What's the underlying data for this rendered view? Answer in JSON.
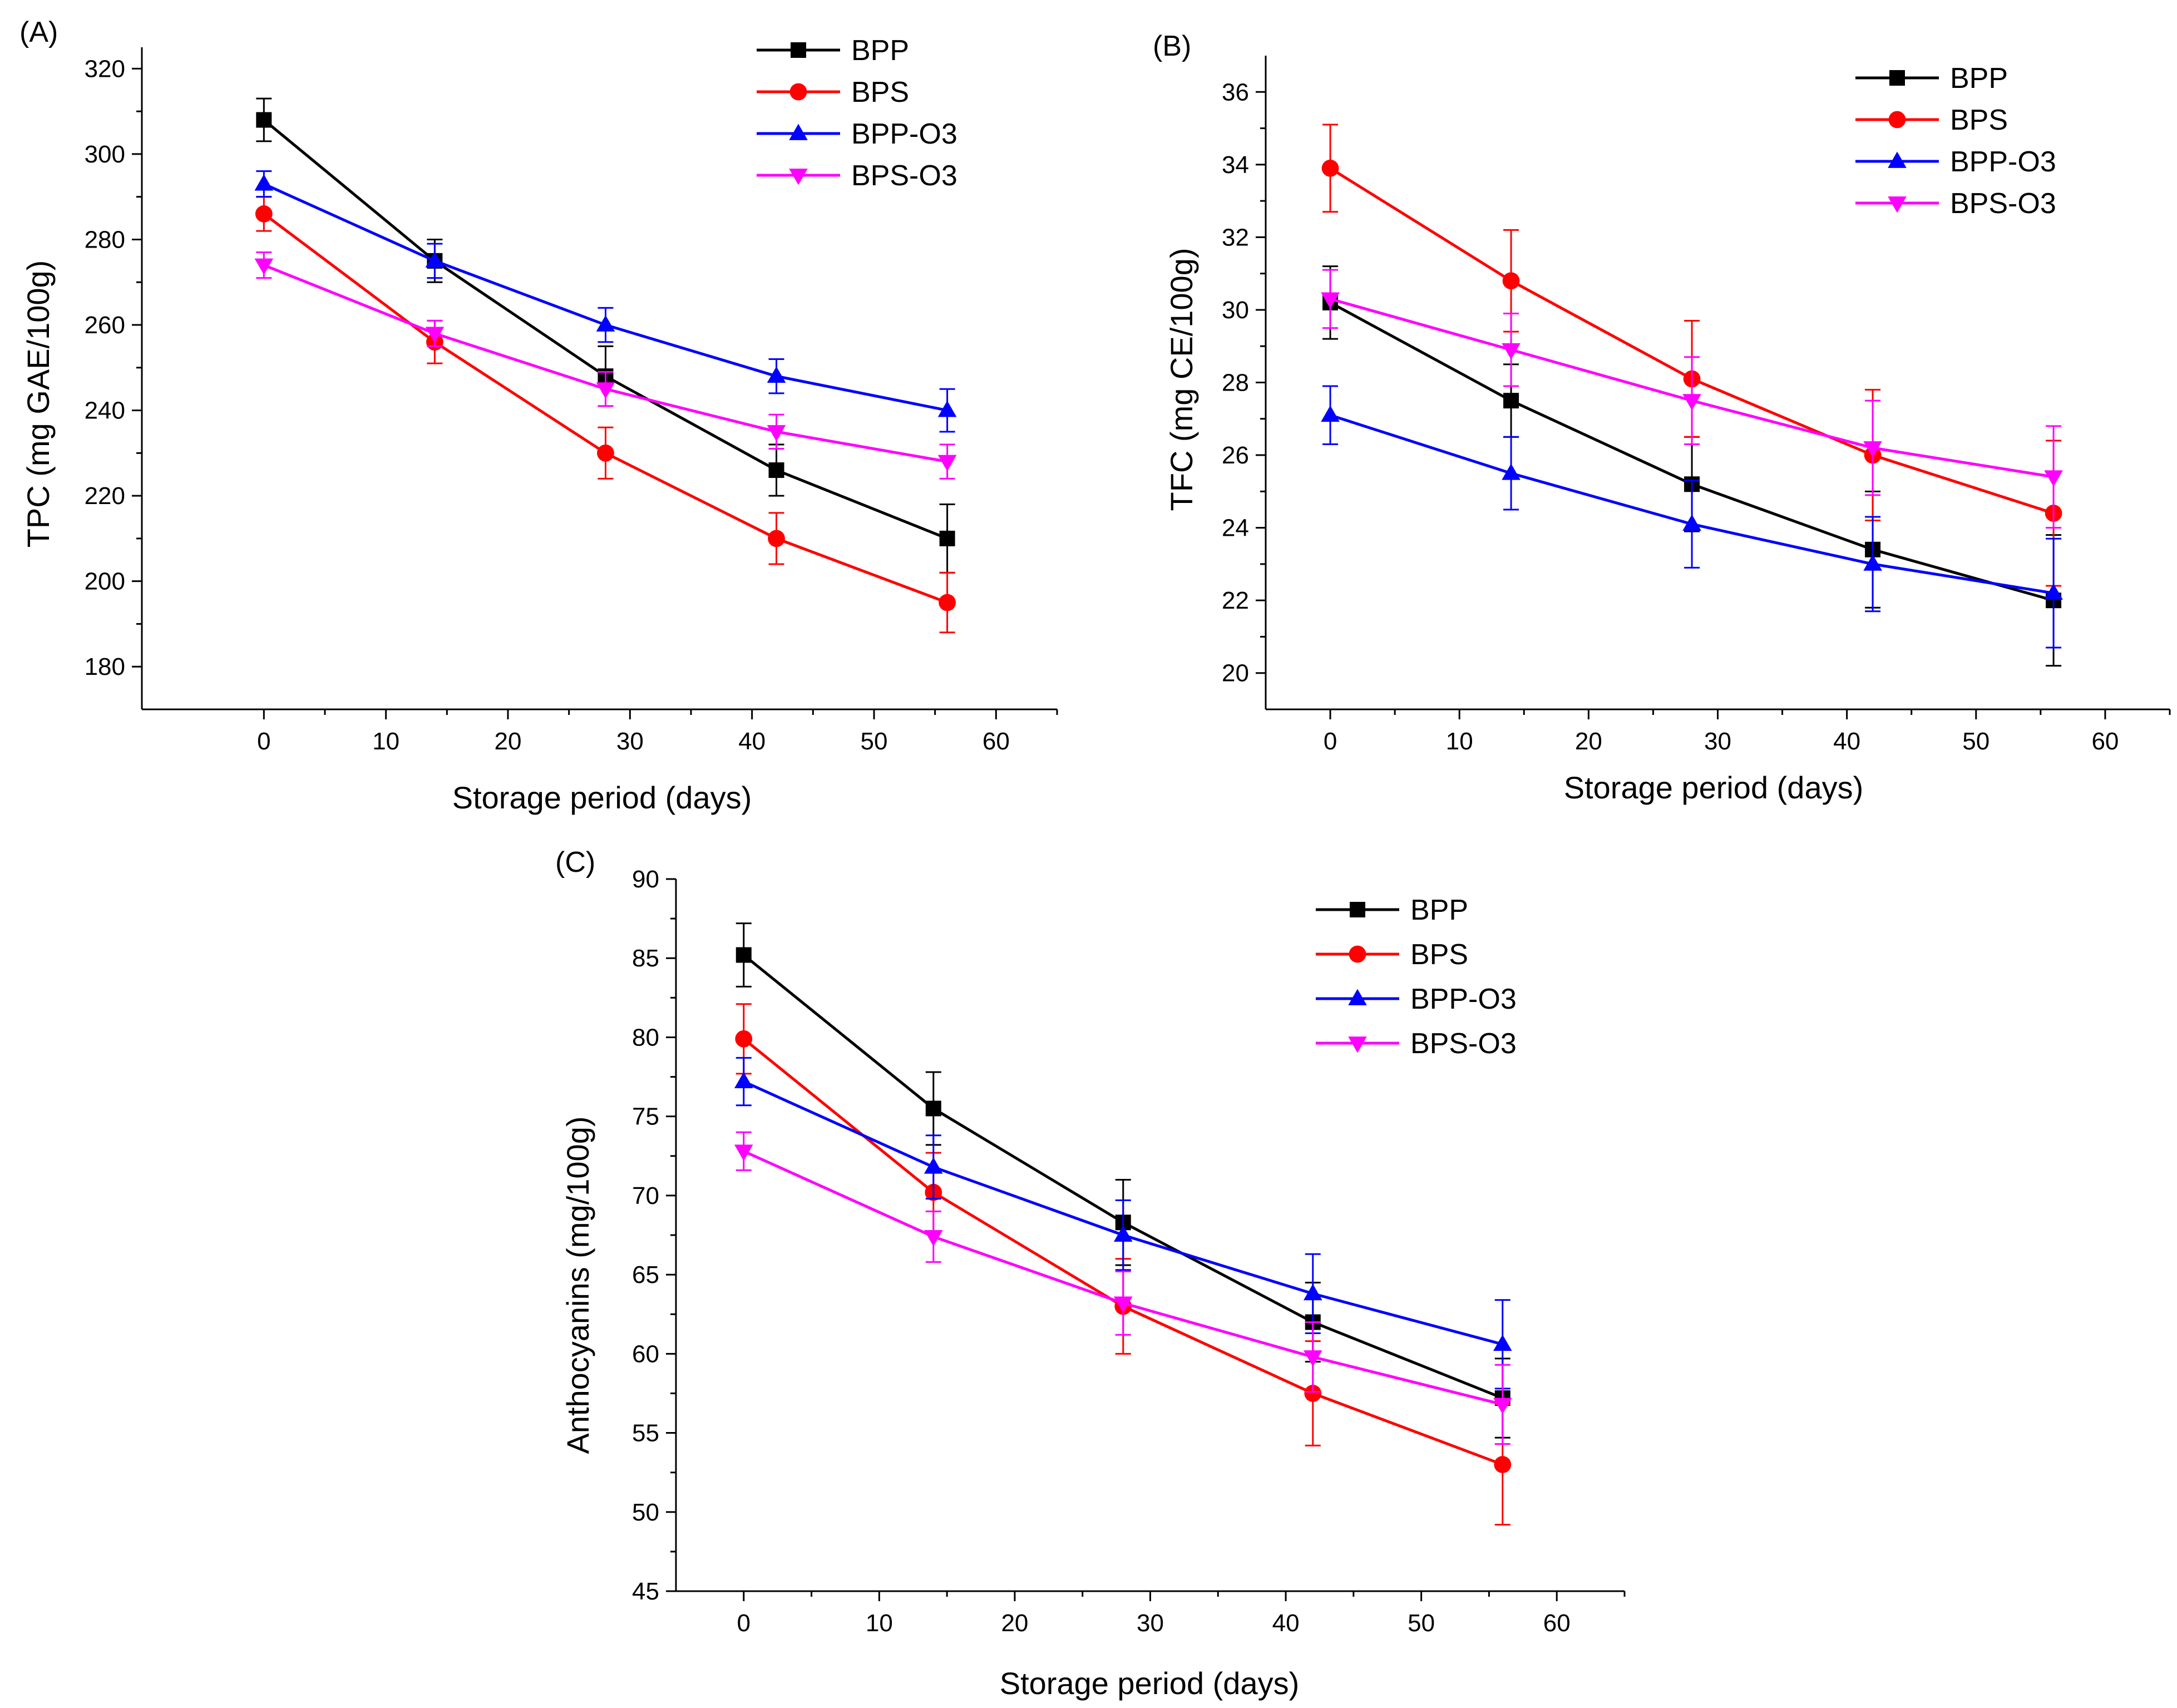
{
  "figure": {
    "background": "#ffffff",
    "axis_color": "#000000"
  },
  "series_style": [
    {
      "name": "BPP",
      "color": "#000000",
      "marker": "square"
    },
    {
      "name": "BPS",
      "color": "#ff0000",
      "marker": "circle"
    },
    {
      "name": "BPP-O3",
      "color": "#0000ff",
      "marker": "triangle-up"
    },
    {
      "name": "BPS-O3",
      "color": "#ff00ff",
      "marker": "triangle-down"
    }
  ],
  "chart_data": [
    {
      "id": "A",
      "panel_label": "(A)",
      "type": "line",
      "xlabel": "Storage period (days)",
      "ylabel": "TPC (mg GAE/100g)",
      "xlim": [
        -10,
        65
      ],
      "ylim": [
        170,
        325
      ],
      "xticks": [
        0,
        10,
        20,
        30,
        40,
        50,
        60
      ],
      "xminor": [
        5,
        15,
        25,
        35,
        45,
        55
      ],
      "yticks": [
        180,
        200,
        220,
        240,
        260,
        280,
        300,
        320
      ],
      "legend_position": "top-right",
      "x": [
        0,
        14,
        28,
        42,
        56
      ],
      "series": [
        {
          "name": "BPP",
          "values": [
            308,
            275,
            248,
            226,
            210
          ],
          "errors": [
            5,
            5,
            7,
            6,
            8
          ]
        },
        {
          "name": "BPS",
          "values": [
            286,
            256,
            230,
            210,
            195
          ],
          "errors": [
            4,
            5,
            6,
            6,
            7
          ]
        },
        {
          "name": "BPP-O3",
          "values": [
            293,
            275,
            260,
            248,
            240
          ],
          "errors": [
            3,
            4,
            4,
            4,
            5
          ]
        },
        {
          "name": "BPS-O3",
          "values": [
            274,
            258,
            245,
            235,
            228
          ],
          "errors": [
            3,
            3,
            4,
            4,
            4
          ]
        }
      ]
    },
    {
      "id": "B",
      "panel_label": "(B)",
      "type": "line",
      "xlabel": "Storage period (days)",
      "ylabel": "TFC (mg CE/100g)",
      "xlim": [
        -5,
        65
      ],
      "ylim": [
        19,
        37
      ],
      "xticks": [
        0,
        10,
        20,
        30,
        40,
        50,
        60
      ],
      "xminor": [
        5,
        15,
        25,
        35,
        45,
        55
      ],
      "yticks": [
        20,
        22,
        24,
        26,
        28,
        30,
        32,
        34,
        36
      ],
      "legend_position": "top-right",
      "x": [
        0,
        14,
        28,
        42,
        56
      ],
      "series": [
        {
          "name": "BPP",
          "values": [
            30.2,
            27.5,
            25.2,
            23.4,
            22.0
          ],
          "errors": [
            1.0,
            1.0,
            1.3,
            1.6,
            1.8
          ]
        },
        {
          "name": "BPS",
          "values": [
            33.9,
            30.8,
            28.1,
            26.0,
            24.4
          ],
          "errors": [
            1.2,
            1.4,
            1.6,
            1.8,
            2.0
          ]
        },
        {
          "name": "BPP-O3",
          "values": [
            27.1,
            25.5,
            24.1,
            23.0,
            22.2
          ],
          "errors": [
            0.8,
            1.0,
            1.2,
            1.3,
            1.5
          ]
        },
        {
          "name": "BPS-O3",
          "values": [
            30.3,
            28.9,
            27.5,
            26.2,
            25.4
          ],
          "errors": [
            0.8,
            1.0,
            1.2,
            1.3,
            1.4
          ]
        }
      ]
    },
    {
      "id": "C",
      "panel_label": "(C)",
      "type": "line",
      "xlabel": "Storage period (days)",
      "ylabel": "Anthocyanins (mg/100g)",
      "xlim": [
        -5,
        65
      ],
      "ylim": [
        45,
        90
      ],
      "xticks": [
        0,
        10,
        20,
        30,
        40,
        50,
        60
      ],
      "xminor": [
        5,
        15,
        25,
        35,
        45,
        55
      ],
      "yticks": [
        45,
        50,
        55,
        60,
        65,
        70,
        75,
        80,
        85,
        90
      ],
      "legend_position": "top-right",
      "x": [
        0,
        14,
        28,
        42,
        56
      ],
      "series": [
        {
          "name": "BPP",
          "values": [
            85.2,
            75.5,
            68.3,
            62.0,
            57.2
          ],
          "errors": [
            2.0,
            2.3,
            2.7,
            2.5,
            2.5
          ]
        },
        {
          "name": "BPS",
          "values": [
            79.9,
            70.2,
            63.0,
            57.5,
            53.0
          ],
          "errors": [
            2.2,
            2.5,
            3.0,
            3.3,
            3.8
          ]
        },
        {
          "name": "BPP-O3",
          "values": [
            77.2,
            71.8,
            67.5,
            63.8,
            60.6
          ],
          "errors": [
            1.5,
            2.0,
            2.2,
            2.5,
            2.8
          ]
        },
        {
          "name": "BPS-O3",
          "values": [
            72.8,
            67.4,
            63.2,
            59.8,
            56.8
          ],
          "errors": [
            1.2,
            1.6,
            2.0,
            2.2,
            2.5
          ]
        }
      ]
    }
  ]
}
